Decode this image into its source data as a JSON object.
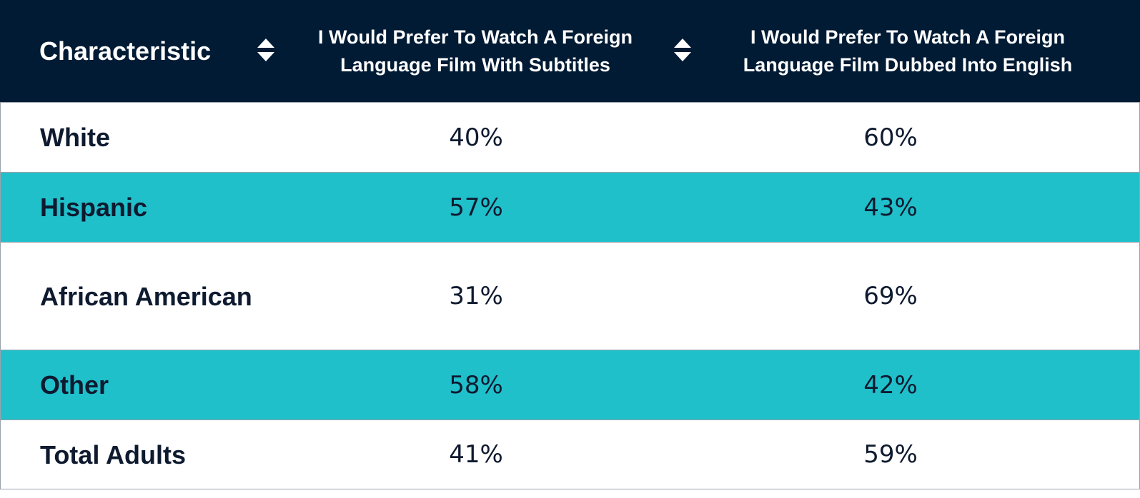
{
  "chart_data": {
    "type": "table",
    "columns": [
      "Characteristic",
      "I Would Prefer To Watch A Foreign Language Film With Subtitles",
      "I Would Prefer To Watch A Foreign Language Film Dubbed Into English"
    ],
    "rows": [
      {
        "label": "White",
        "values": [
          "40%",
          "60%"
        ]
      },
      {
        "label": "Hispanic",
        "values": [
          "57%",
          "43%"
        ]
      },
      {
        "label": "African American",
        "values": [
          "31%",
          "69%"
        ]
      },
      {
        "label": "Other",
        "values": [
          "58%",
          "42%"
        ]
      },
      {
        "label": "Total Adults",
        "values": [
          "41%",
          "59%"
        ]
      }
    ]
  },
  "colors": {
    "header_bg": "#011b34",
    "band_bg": "#20c0cb",
    "text": "#0e1a2f"
  },
  "icons": {
    "sort": "sort-arrows-icon"
  }
}
